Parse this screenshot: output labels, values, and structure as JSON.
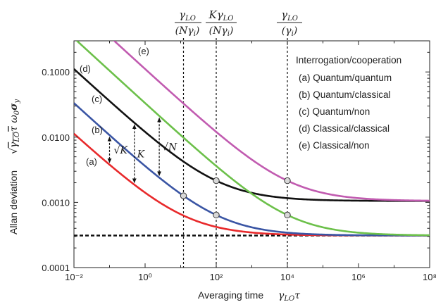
{
  "chart_data": {
    "type": "line",
    "xlabel": "Averaging time",
    "xlabel_symbol": "γLOτ",
    "ylabel": "Allan deviation",
    "ylabel_symbol": "√(γLO τ) ω0 σy",
    "xscale": "log",
    "yscale": "log",
    "xlim": [
      0.01,
      100000000
    ],
    "ylim": [
      0.0001,
      0.3
    ],
    "x_ticks": [
      "10⁻²",
      "10⁰",
      "10²",
      "10⁴",
      "10⁶",
      "10⁸"
    ],
    "y_ticks": [
      "0.0001",
      "0.0010",
      "0.0100",
      "0.1000"
    ],
    "legend_title": "Interrogation/cooperation",
    "legend_position": "top-right",
    "series": [
      {
        "name": "(a) Quantum/quantum",
        "label": "(a)",
        "color": "#e8292b",
        "floor": 0.00031,
        "amp": 0.0011
      },
      {
        "name": "(b) Quantum/classical",
        "label": "(b)",
        "color": "#3a55a4",
        "floor": 0.00031,
        "amp": 0.0033
      },
      {
        "name": "(c) Quantum/non",
        "label": "(c)",
        "color": "#111111",
        "floor": 0.00105,
        "amp": 0.011
      },
      {
        "name": "(d) Classical/classical",
        "label": "(d)",
        "color": "#6cc04a",
        "floor": 0.00031,
        "amp": 0.033
      },
      {
        "name": "(e) Classical/non",
        "label": "(e)",
        "color": "#c15bb0",
        "floor": 0.00105,
        "amp": 0.11
      }
    ],
    "reference_line": {
      "value": 0.00031,
      "style": "dashed",
      "color": "#111111"
    },
    "vlines": [
      {
        "x": 12,
        "label": "γLO/(Nγi)"
      },
      {
        "x": 100,
        "label": "KγLO/(Nγi)"
      },
      {
        "x": 10000,
        "label": "γLO/(γi)"
      }
    ],
    "markers": [
      {
        "x": 12,
        "series": 1
      },
      {
        "x": 100,
        "series": 1
      },
      {
        "x": 100,
        "series": 2
      },
      {
        "x": 10000,
        "series": 3
      },
      {
        "x": 10000,
        "series": 4
      }
    ],
    "annotations": [
      {
        "text": "√K",
        "x": 0.1,
        "from": 0,
        "to": 1
      },
      {
        "text": "K",
        "x": 0.5,
        "from": 0,
        "to": 2
      },
      {
        "text": "√N",
        "x": 2.5,
        "from": 1,
        "to": 3
      }
    ]
  }
}
